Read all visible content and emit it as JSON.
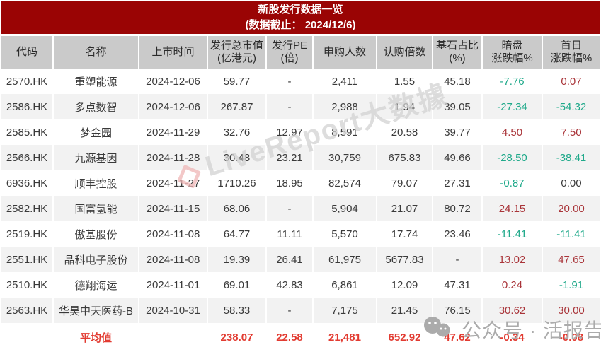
{
  "title": {
    "line1": "新股发行数据一览",
    "line2": "(数据截止： 2024/12/6)"
  },
  "chart_data": {
    "type": "table",
    "title": "新股发行数据一览",
    "subtitle": "(数据截止： 2024/12/6)",
    "columns": [
      "代码",
      "名称",
      "上市时间",
      "发行总市值\n(亿港元)",
      "发行PE\n(倍)",
      "申购人数",
      "认购倍数",
      "基石占比\n(%)",
      "暗盘\n涨跌幅%",
      "首日\n涨跌幅%"
    ],
    "rows": [
      {
        "cells": [
          "2570.HK",
          "重塑能源",
          "2024-12-06",
          "59.77",
          "-",
          "2,411",
          "1.55",
          "45.18",
          "-7.76",
          "0.07"
        ],
        "trends": [
          "",
          "",
          "",
          "",
          "",
          "",
          "",
          "",
          "down",
          "up"
        ]
      },
      {
        "cells": [
          "2586.HK",
          "多点数智",
          "2024-12-06",
          "267.87",
          "-",
          "2,988",
          "1.94",
          "39.05",
          "-27.34",
          "-54.32"
        ],
        "trends": [
          "",
          "",
          "",
          "",
          "",
          "",
          "",
          "",
          "down",
          "down"
        ]
      },
      {
        "cells": [
          "2585.HK",
          "梦金园",
          "2024-11-29",
          "32.76",
          "12.97",
          "8,591",
          "20.58",
          "39.77",
          "4.50",
          "7.50"
        ],
        "trends": [
          "",
          "",
          "",
          "",
          "",
          "",
          "",
          "",
          "up",
          "up"
        ]
      },
      {
        "cells": [
          "2566.HK",
          "九源基因",
          "2024-11-28",
          "30.48",
          "23.21",
          "30,759",
          "675.83",
          "49.66",
          "-28.50",
          "-38.41"
        ],
        "trends": [
          "",
          "",
          "",
          "",
          "",
          "",
          "",
          "",
          "down",
          "down"
        ]
      },
      {
        "cells": [
          "6936.HK",
          "顺丰控股",
          "2024-11-27",
          "1710.26",
          "18.95",
          "82,574",
          "79.07",
          "27.31",
          "-0.87",
          "0.00"
        ],
        "trends": [
          "",
          "",
          "",
          "",
          "",
          "",
          "",
          "",
          "down",
          "flat"
        ]
      },
      {
        "cells": [
          "2582.HK",
          "国富氢能",
          "2024-11-15",
          "68.06",
          "-",
          "5,904",
          "21.07",
          "80.72",
          "24.15",
          "20.00"
        ],
        "trends": [
          "",
          "",
          "",
          "",
          "",
          "",
          "",
          "",
          "up",
          "up"
        ]
      },
      {
        "cells": [
          "2519.HK",
          "傲基股份",
          "2024-11-08",
          "64.77",
          "11.11",
          "5,570",
          "17.74",
          "23.46",
          "-11.41",
          "-11.41"
        ],
        "trends": [
          "",
          "",
          "",
          "",
          "",
          "",
          "",
          "",
          "down",
          "down"
        ]
      },
      {
        "cells": [
          "2551.HK",
          "晶科电子股份",
          "2024-11-08",
          "19.39",
          "26.41",
          "61,975",
          "5677.83",
          "-",
          "13.02",
          "47.65"
        ],
        "trends": [
          "",
          "",
          "",
          "",
          "",
          "",
          "",
          "",
          "up",
          "up"
        ]
      },
      {
        "cells": [
          "2510.HK",
          "德翔海运",
          "2024-11-01",
          "69.01",
          "42.83",
          "6,861",
          "12.09",
          "47.31",
          "0.24",
          "-1.91"
        ],
        "trends": [
          "",
          "",
          "",
          "",
          "",
          "",
          "",
          "",
          "up",
          "down"
        ]
      },
      {
        "cells": [
          "2563.HK",
          "华昊中天医药-B",
          "2024-10-31",
          "58.33",
          "-",
          "7,175",
          "21.45",
          "76.15",
          "30.62",
          "30.00"
        ],
        "trends": [
          "",
          "",
          "",
          "",
          "",
          "",
          "",
          "",
          "up",
          "up"
        ]
      }
    ],
    "average": {
      "cells": [
        "",
        "平均值",
        "",
        "238.07",
        "22.58",
        "21,481",
        "652.92",
        "47.62",
        "-0.34",
        "-0.08"
      ]
    },
    "layout_hints": {
      "grid": "striped-rows",
      "value_alignment": "center"
    }
  },
  "watermark": {
    "text": "LiveReport大数據",
    "logo": "livereport-logo"
  },
  "wechat": {
    "text": "公众号 · 活报告",
    "icon": "wechat-icon"
  },
  "colors": {
    "title_bg": "#9A0404",
    "header_bg": "#CACACA",
    "row_stripe": "#F2F2F2",
    "text_dark": "#3A3A3A",
    "up_red": "#A93439",
    "down_green": "#1FA98A",
    "average_red": "#E23B31",
    "watermark_gray": "#D2D2D2",
    "watermark_pink": "#EFB6B6",
    "wechat_gray": "#ABABAB"
  }
}
